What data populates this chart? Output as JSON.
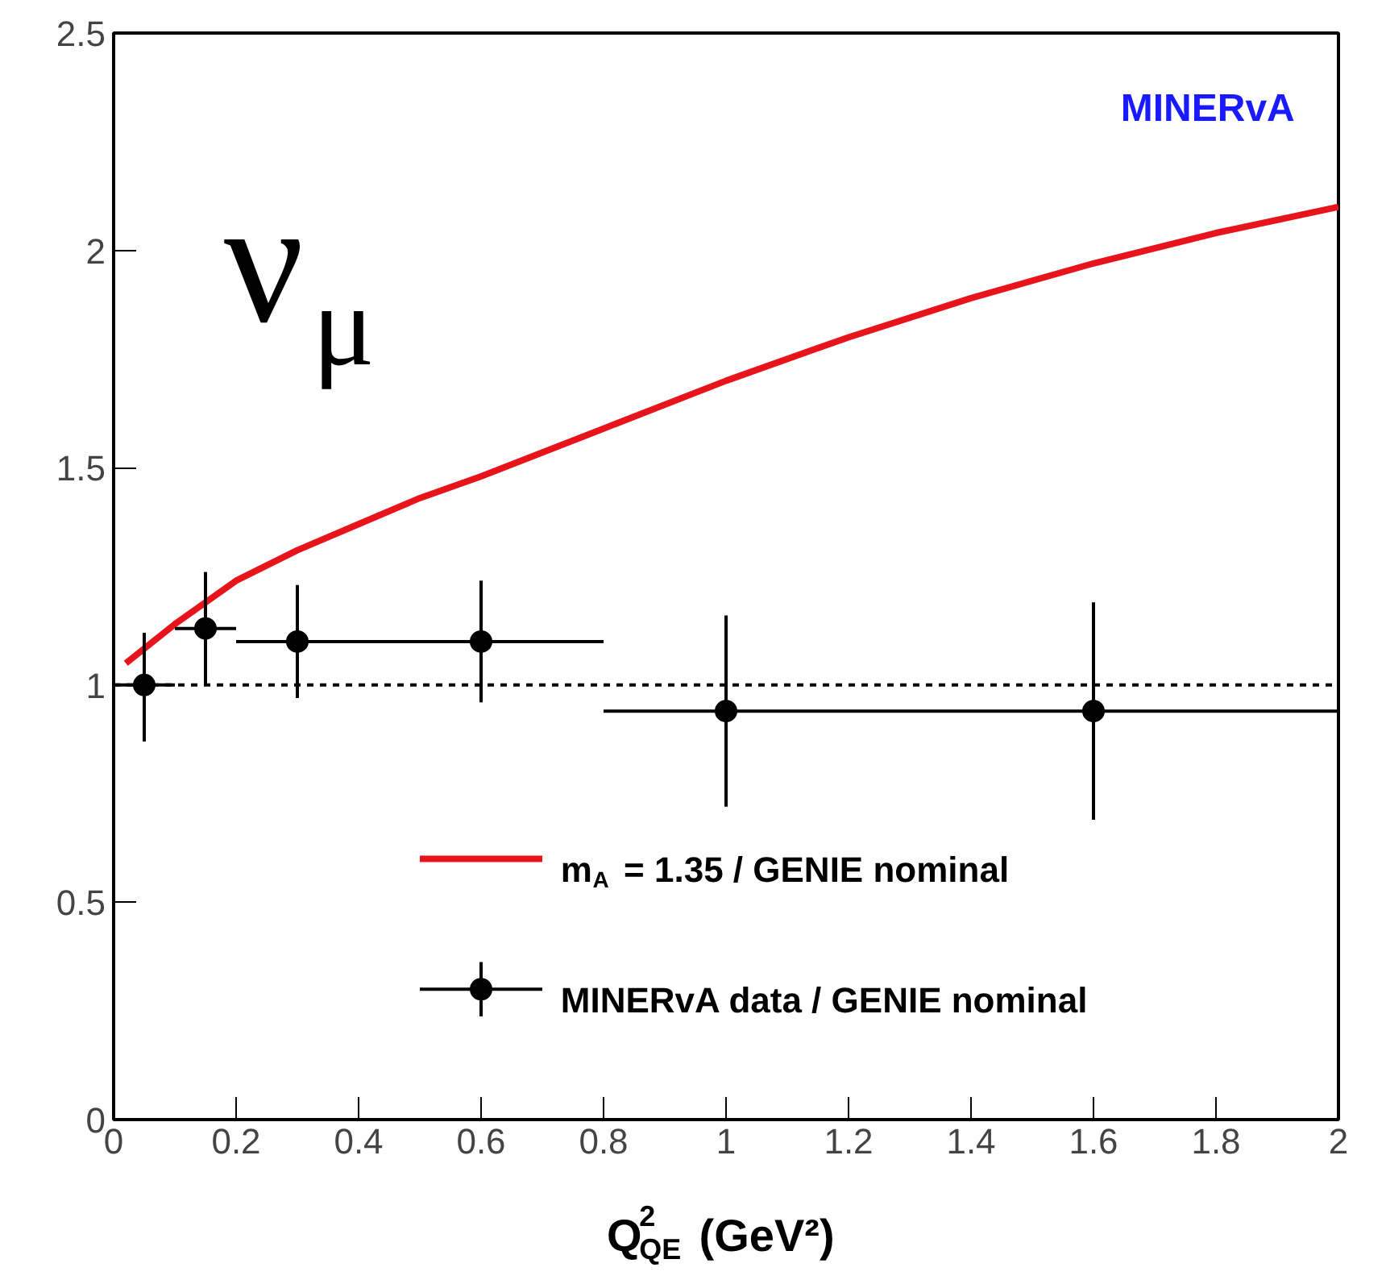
{
  "chart_data": {
    "type": "scatter",
    "xlabel": "Q$^{2}$$_{QE}$ (GeV²)",
    "xlim": [
      0,
      2
    ],
    "ylim": [
      0,
      2.5
    ],
    "xticks": [
      0,
      0.2,
      0.4,
      0.6,
      0.8,
      1,
      1.2,
      1.4,
      1.6,
      1.8,
      2
    ],
    "yticks": [
      0,
      0.5,
      1,
      1.5,
      2,
      2.5
    ],
    "grid": false,
    "legend": "bottom right",
    "marker": "circle",
    "series": [
      {
        "name": "m$_{A}$ = 1.35 / GENIE nominal",
        "type": "line",
        "color": "#e8141b",
        "marker": "none",
        "line_style": "solid",
        "x": [
          0.02,
          0.1,
          0.2,
          0.3,
          0.4,
          0.5,
          0.6,
          0.8,
          1.0,
          1.2,
          1.4,
          1.6,
          1.8,
          2.0
        ],
        "values": [
          1.05,
          1.14,
          1.24,
          1.31,
          1.37,
          1.43,
          1.48,
          1.59,
          1.7,
          1.8,
          1.89,
          1.97,
          2.04,
          2.1
        ]
      },
      {
        "name": "MINERvA data / GENIE nominal",
        "color": "#000000",
        "x": [
          0.05,
          0.15,
          0.3,
          0.6,
          1.0,
          1.6
        ],
        "values": [
          1.0,
          1.13,
          1.1,
          1.1,
          0.94,
          0.94
        ],
        "errors": [
          [
            0.87,
            1.12
          ],
          [
            1.0,
            1.26
          ],
          [
            0.97,
            1.23
          ],
          [
            0.96,
            1.24
          ],
          [
            0.72,
            1.16
          ],
          [
            0.69,
            1.19
          ]
        ],
        "xerrors": [
          [
            0,
            0.1
          ],
          [
            0.1,
            0.2
          ],
          [
            0.2,
            0.4
          ],
          [
            0.4,
            0.8
          ],
          [
            0.8,
            1.2
          ],
          [
            1.2,
            2.0
          ]
        ]
      }
    ],
    "ref_lines": [
      {
        "axis": "y",
        "value": 1,
        "label": null,
        "color": "#000000",
        "line_style": "dashed"
      }
    ],
    "annotations": [
      "MINERvA",
      "ν$_{μ}$"
    ]
  }
}
